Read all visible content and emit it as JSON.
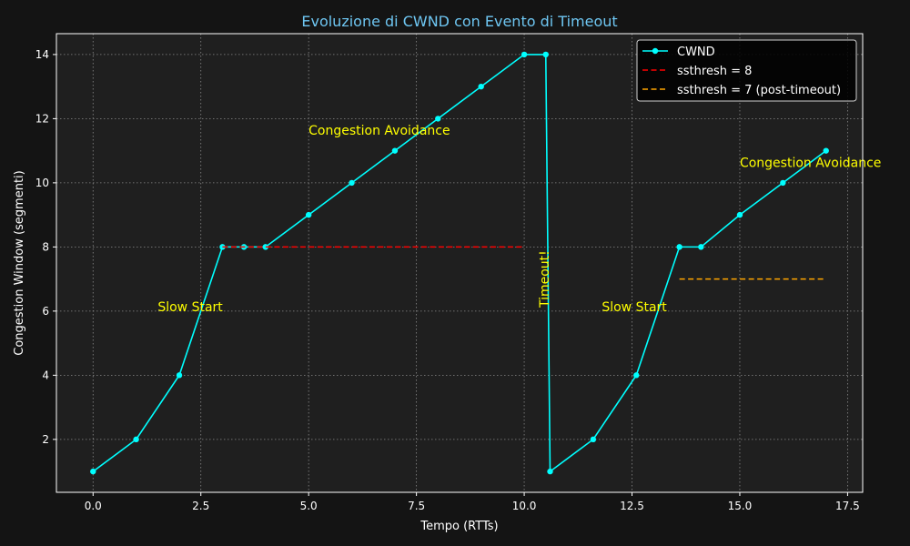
{
  "chart_data": {
    "type": "line",
    "title": "Evoluzione di CWND con Evento di Timeout",
    "xlabel": "Tempo (RTTs)",
    "ylabel": "Congestion Window (segmenti)",
    "xlim": [
      -0.85,
      17.85
    ],
    "ylim": [
      0.35,
      14.65
    ],
    "xticks": [
      0.0,
      2.5,
      5.0,
      7.5,
      10.0,
      12.5,
      15.0,
      17.5
    ],
    "xtick_labels": [
      "0.0",
      "2.5",
      "5.0",
      "7.5",
      "10.0",
      "12.5",
      "15.0",
      "17.5"
    ],
    "yticks": [
      2,
      4,
      6,
      8,
      10,
      12,
      14
    ],
    "ytick_labels": [
      "2",
      "4",
      "6",
      "8",
      "10",
      "12",
      "14"
    ],
    "grid": true,
    "legend_position": "top-right",
    "series": [
      {
        "name": "CWND",
        "color": "#00ffff",
        "style": "solid",
        "marker": true,
        "x": [
          0,
          1,
          2,
          3,
          3.5,
          4,
          5,
          6,
          7,
          8,
          9,
          10,
          10.5,
          10.6,
          11.6,
          12.6,
          13.6,
          14.1,
          15,
          16,
          17
        ],
        "y": [
          1,
          2,
          4,
          8,
          8,
          8,
          9,
          10,
          11,
          12,
          13,
          14,
          14,
          1,
          2,
          4,
          8,
          8,
          9,
          10,
          11
        ]
      },
      {
        "name": "ssthresh = 8",
        "color": "#ff0000",
        "style": "dashed",
        "marker": false,
        "x": [
          3,
          10
        ],
        "y": [
          8,
          8
        ]
      },
      {
        "name": "ssthresh = 7 (post-timeout)",
        "color": "#ffa500",
        "style": "dashed",
        "marker": false,
        "x": [
          13.6,
          17
        ],
        "y": [
          7,
          7
        ]
      }
    ],
    "annotations": [
      {
        "text": "Slow Start",
        "x": 1.5,
        "y": 6,
        "color": "#ffff00",
        "rotation": 0
      },
      {
        "text": "Congestion Avoidance",
        "x": 5.0,
        "y": 11.5,
        "color": "#ffff00",
        "rotation": 0
      },
      {
        "text": "Timeout!",
        "x": 10.5,
        "y": 7.0,
        "color": "#ffb6c1",
        "rotation": 90
      },
      {
        "text": "Slow Start",
        "x": 11.8,
        "y": 6,
        "color": "#ffff00",
        "rotation": 0
      },
      {
        "text": "Congestion Avoidance",
        "x": 15.0,
        "y": 10.5,
        "color": "#ffff00",
        "rotation": 0
      }
    ]
  }
}
